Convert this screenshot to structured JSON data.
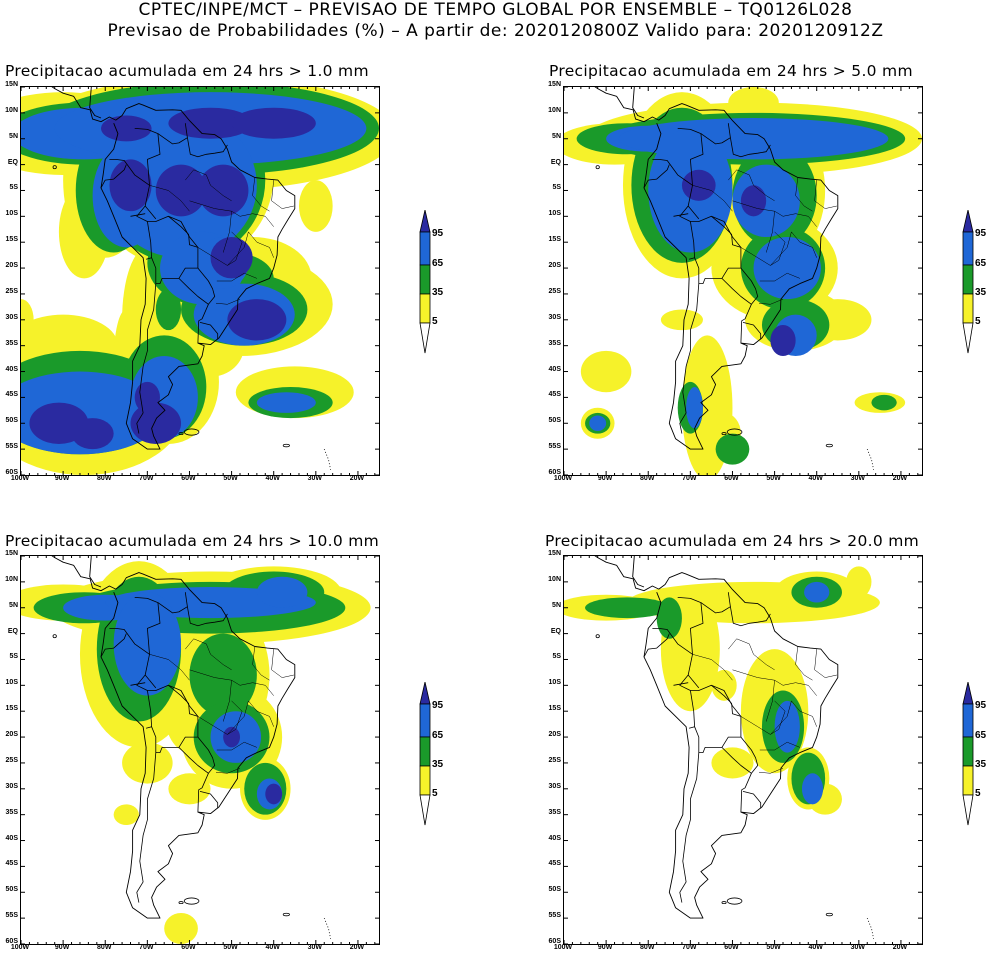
{
  "header": {
    "line1": "CPTEC/INPE/MCT – PREVISAO DE TEMPO GLOBAL POR ENSEMBLE – TQ0126L028",
    "line2": "Previsao de Probabilidades (%) –   A partir de: 2020120800Z  Valido para: 2020120912Z"
  },
  "axes": {
    "lat_labels": [
      "15N",
      "10N",
      "5N",
      "EQ",
      "5S",
      "10S",
      "15S",
      "20S",
      "25S",
      "30S",
      "35S",
      "40S",
      "45S",
      "50S",
      "55S",
      "60S"
    ],
    "lon_labels": [
      "100W",
      "90W",
      "80W",
      "70W",
      "60W",
      "50W",
      "40W",
      "30W",
      "20W"
    ]
  },
  "legend": {
    "levels": [
      "95",
      "65",
      "35",
      "5"
    ],
    "colors": {
      "c95": "#2a2aa0",
      "c65": "#1f67d6",
      "c35": "#1a9a2a",
      "c5": "#f6f22a"
    }
  },
  "panels": [
    {
      "title": "Precipitacao acumulada em 24 hrs > 1.0 mm"
    },
    {
      "title": "Precipitacao acumulada em 24 hrs > 5.0 mm"
    },
    {
      "title": "Precipitacao acumulada em 24 hrs > 10.0 mm"
    },
    {
      "title": "Precipitacao acumulada em 24 hrs > 20.0 mm"
    }
  ]
}
